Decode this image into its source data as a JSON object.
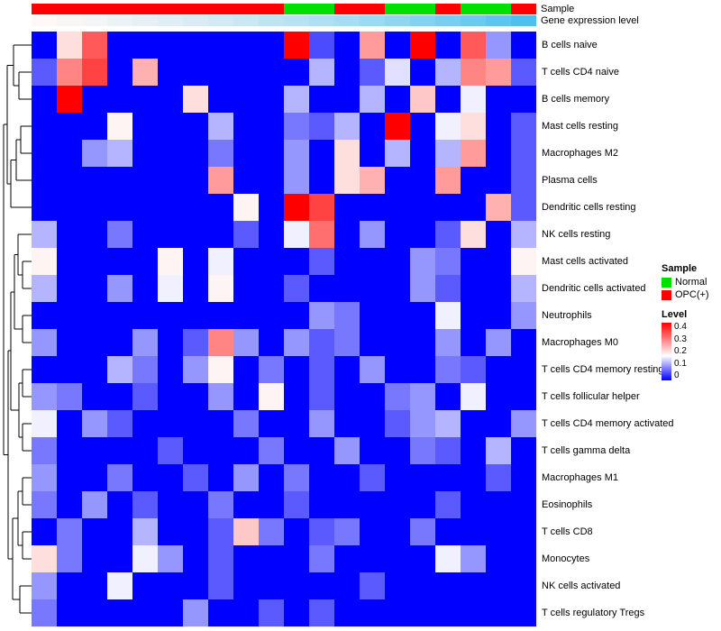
{
  "annotations": {
    "sample_label": "Sample",
    "gene_label": "Gene expression level",
    "sample_colors": {
      "Normal": "#00E000",
      "OPC(+)": "#FF0000"
    },
    "sample_track": [
      "OPC(+)",
      "OPC(+)",
      "OPC(+)",
      "OPC(+)",
      "OPC(+)",
      "OPC(+)",
      "OPC(+)",
      "OPC(+)",
      "OPC(+)",
      "OPC(+)",
      "Normal",
      "Normal",
      "OPC(+)",
      "OPC(+)",
      "Normal",
      "Normal",
      "OPC(+)",
      "Normal",
      "Normal",
      "OPC(+)"
    ],
    "gene_gradient": {
      "left": "#FEF8F6",
      "right": "#4FC0EE"
    },
    "gene_track": [
      1,
      0.97,
      0.94,
      0.9,
      0.87,
      0.83,
      0.79,
      0.75,
      0.7,
      0.65,
      0.6,
      0.55,
      0.5,
      0.44,
      0.38,
      0.31,
      0.24,
      0.17,
      0.09,
      0
    ]
  },
  "legend": {
    "sample_title": "Sample",
    "sample_items": [
      {
        "label": "Normal",
        "color": "#00E000"
      },
      {
        "label": "OPC(+)",
        "color": "#FF0000"
      }
    ],
    "level_title": "Level",
    "level_ticks": [
      "0.4",
      "0.3",
      "0.2",
      "0.1",
      "0"
    ]
  },
  "chart_data": {
    "type": "heatmap",
    "title": "",
    "rows": [
      "B cells naive",
      "T cells CD4 naive",
      "B cells memory",
      "Mast cells resting",
      "Macrophages M2",
      "Plasma cells",
      "Dendritic cells resting",
      "NK cells resting",
      "Mast cells activated",
      "Dendritic cells activated",
      "Neutrophils",
      "Macrophages M0",
      "T cells CD4 memory resting",
      "T cells follicular helper",
      "T cells CD4 memory activated",
      "T cells gamma delta",
      "Macrophages M1",
      "Eosinophils",
      "T cells CD8",
      "Monocytes",
      "NK cells activated",
      "T cells regulatory Tregs"
    ],
    "column_count": 20,
    "value_range": [
      0,
      0.4
    ],
    "colormap": {
      "low": "#0000FF",
      "mid": "#FFFFFF",
      "high": "#FF0000",
      "mid_value": 0.17
    },
    "values": [
      [
        0,
        0.2,
        0.32,
        0,
        0,
        0,
        0,
        0,
        0,
        0,
        0.4,
        0.05,
        0,
        0.26,
        0,
        0.4,
        0,
        0.32,
        0.1,
        0
      ],
      [
        0.06,
        0.28,
        0.34,
        0,
        0.24,
        0,
        0,
        0,
        0,
        0,
        0,
        0.12,
        0,
        0.06,
        0.15,
        0,
        0.12,
        0.28,
        0.26,
        0.06
      ],
      [
        0,
        0.4,
        0,
        0,
        0,
        0,
        0.2,
        0,
        0,
        0,
        0.12,
        0,
        0,
        0.12,
        0,
        0.22,
        0,
        0.16,
        0,
        0
      ],
      [
        0,
        0,
        0,
        0.18,
        0,
        0,
        0,
        0.12,
        0,
        0,
        0.08,
        0.06,
        0.12,
        0,
        0.4,
        0,
        0.16,
        0.2,
        0,
        0.06
      ],
      [
        0,
        0,
        0.1,
        0.12,
        0,
        0,
        0,
        0.08,
        0,
        0,
        0.1,
        0,
        0.2,
        0,
        0.12,
        0,
        0.12,
        0.26,
        0,
        0.06
      ],
      [
        0,
        0,
        0,
        0,
        0,
        0,
        0,
        0.26,
        0,
        0,
        0.1,
        0,
        0.2,
        0.24,
        0,
        0,
        0.26,
        0,
        0,
        0.06
      ],
      [
        0,
        0,
        0,
        0,
        0,
        0,
        0,
        0,
        0.18,
        0,
        0.4,
        0.34,
        0,
        0,
        0,
        0,
        0,
        0,
        0.24,
        0.06
      ],
      [
        0.12,
        0,
        0,
        0.08,
        0,
        0,
        0,
        0,
        0.06,
        0,
        0.16,
        0.3,
        0,
        0.1,
        0,
        0,
        0.06,
        0.2,
        0,
        0.12
      ],
      [
        0.18,
        0,
        0,
        0,
        0,
        0.18,
        0,
        0.16,
        0,
        0,
        0,
        0.06,
        0,
        0,
        0,
        0.1,
        0.08,
        0,
        0,
        0.18
      ],
      [
        0.12,
        0,
        0,
        0.1,
        0,
        0.16,
        0,
        0.18,
        0,
        0,
        0.06,
        0,
        0,
        0,
        0,
        0.1,
        0.06,
        0,
        0,
        0.12
      ],
      [
        0,
        0,
        0,
        0,
        0,
        0,
        0,
        0,
        0,
        0,
        0,
        0.1,
        0.08,
        0,
        0,
        0,
        0.16,
        0,
        0,
        0.1
      ],
      [
        0.1,
        0,
        0,
        0,
        0.1,
        0,
        0.06,
        0.28,
        0.1,
        0,
        0.1,
        0.06,
        0.08,
        0,
        0,
        0,
        0.1,
        0,
        0.1,
        0
      ],
      [
        0,
        0,
        0,
        0.12,
        0.08,
        0,
        0.1,
        0.18,
        0,
        0.08,
        0,
        0.06,
        0,
        0.1,
        0,
        0,
        0.08,
        0.06,
        0,
        0
      ],
      [
        0.1,
        0.08,
        0,
        0,
        0.06,
        0,
        0,
        0.1,
        0,
        0.18,
        0,
        0.06,
        0,
        0,
        0.08,
        0.1,
        0,
        0.16,
        0,
        0
      ],
      [
        0.16,
        0,
        0.1,
        0.06,
        0,
        0,
        0,
        0,
        0.08,
        0,
        0,
        0.1,
        0,
        0,
        0.06,
        0.1,
        0.12,
        0,
        0,
        0.1
      ],
      [
        0.08,
        0,
        0,
        0,
        0,
        0.06,
        0,
        0,
        0,
        0.08,
        0,
        0,
        0.1,
        0,
        0,
        0.08,
        0.06,
        0,
        0.12,
        0
      ],
      [
        0.1,
        0,
        0,
        0.08,
        0,
        0,
        0.06,
        0,
        0.1,
        0,
        0.08,
        0,
        0,
        0.06,
        0,
        0,
        0,
        0,
        0.06,
        0
      ],
      [
        0.08,
        0,
        0.1,
        0,
        0.06,
        0,
        0,
        0.08,
        0,
        0,
        0.06,
        0,
        0,
        0,
        0,
        0,
        0.06,
        0,
        0,
        0
      ],
      [
        0,
        0.08,
        0,
        0,
        0.12,
        0,
        0,
        0.06,
        0.22,
        0.08,
        0,
        0.06,
        0.08,
        0,
        0,
        0.08,
        0,
        0,
        0,
        0
      ],
      [
        0.2,
        0.08,
        0,
        0,
        0.16,
        0.1,
        0,
        0.06,
        0,
        0,
        0,
        0.08,
        0,
        0,
        0,
        0,
        0.16,
        0.1,
        0,
        0
      ],
      [
        0.1,
        0,
        0,
        0.16,
        0,
        0,
        0,
        0.06,
        0,
        0,
        0,
        0,
        0,
        0.06,
        0,
        0,
        0,
        0,
        0,
        0
      ],
      [
        0.08,
        0,
        0,
        0,
        0,
        0,
        0.1,
        0,
        0,
        0.06,
        0,
        0.06,
        0,
        0,
        0,
        0,
        0,
        0,
        0,
        0
      ]
    ]
  }
}
